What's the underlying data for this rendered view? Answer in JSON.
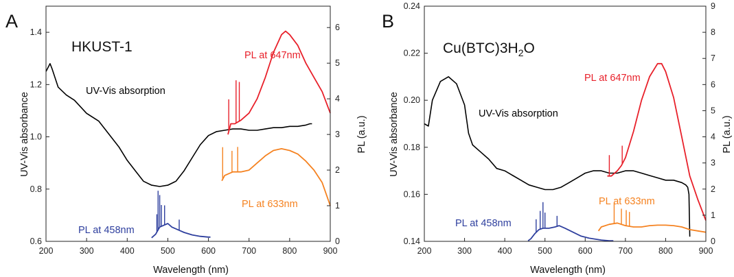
{
  "chart_data": [
    {
      "type": "line",
      "panel": "A",
      "title": "HKUST-1",
      "title_sub": "",
      "title_tail": "",
      "xlabel": "Wavelength (nm)",
      "ylabel": "UV-Vis absorbance",
      "y2label": "PL (a.u.)",
      "xlim": [
        200,
        900
      ],
      "ylim": [
        0.6,
        1.5
      ],
      "y2lim": [
        0,
        6.6
      ],
      "xticks": [
        "200",
        "300",
        "400",
        "500",
        "600",
        "700",
        "800",
        "900"
      ],
      "yticks": [
        "0.6",
        "0.8",
        "1.0",
        "1.2",
        "1.4"
      ],
      "y2ticks": [
        "0",
        "1",
        "2",
        "3",
        "4",
        "5",
        "6"
      ],
      "colors": {
        "uvvis": "#000000",
        "pl647": "#e8202a",
        "pl633": "#f58220",
        "pl458": "#2e3f9e"
      },
      "series": [
        {
          "name": "UV-Vis absorption",
          "axis": "left",
          "color": "#000000",
          "x": [
            200,
            210,
            215,
            230,
            250,
            270,
            300,
            330,
            350,
            380,
            400,
            420,
            440,
            460,
            480,
            500,
            520,
            540,
            560,
            580,
            600,
            620,
            640,
            660,
            680,
            700,
            720,
            740,
            760,
            780,
            800,
            820,
            840,
            850,
            855
          ],
          "y": [
            1.25,
            1.28,
            1.26,
            1.19,
            1.16,
            1.14,
            1.09,
            1.06,
            1.02,
            0.96,
            0.91,
            0.87,
            0.83,
            0.815,
            0.81,
            0.815,
            0.83,
            0.87,
            0.92,
            0.97,
            1.005,
            1.02,
            1.025,
            1.03,
            1.03,
            1.025,
            1.025,
            1.03,
            1.035,
            1.035,
            1.04,
            1.04,
            1.045,
            1.05,
            1.05
          ]
        },
        {
          "name": "PL at 647nm",
          "axis": "right",
          "color": "#e8202a",
          "x": [
            648,
            655,
            665,
            680,
            700,
            720,
            740,
            760,
            780,
            790,
            800,
            820,
            840,
            860,
            880,
            900
          ],
          "y": [
            3.0,
            3.3,
            3.3,
            3.4,
            3.6,
            4.0,
            4.6,
            5.3,
            5.8,
            5.9,
            5.8,
            5.5,
            5.0,
            4.6,
            4.2,
            3.6
          ]
        },
        {
          "name": "PL at 633nm",
          "axis": "right",
          "color": "#f58220",
          "x": [
            633,
            640,
            660,
            680,
            700,
            720,
            740,
            760,
            780,
            800,
            820,
            840,
            860,
            880,
            900
          ],
          "y": [
            1.7,
            1.85,
            1.95,
            1.95,
            2.0,
            2.2,
            2.4,
            2.55,
            2.6,
            2.55,
            2.45,
            2.25,
            2.0,
            1.65,
            1.0
          ]
        },
        {
          "name": "PL at 458nm",
          "axis": "right",
          "color": "#2e3f9e",
          "x": [
            460,
            470,
            480,
            490,
            500,
            510,
            520,
            530,
            540,
            560,
            580,
            600,
            605
          ],
          "y": [
            0.1,
            0.2,
            0.4,
            0.45,
            0.5,
            0.4,
            0.35,
            0.3,
            0.25,
            0.18,
            0.14,
            0.12,
            0.12
          ]
        }
      ],
      "spikes": {
        "pl647": [
          [
            650,
            0.9
          ],
          [
            668,
            1.2
          ],
          [
            676,
            1.1
          ]
        ],
        "pl633": [
          [
            635,
            0.9
          ],
          [
            658,
            0.6
          ],
          [
            672,
            0.7
          ]
        ],
        "pl458": [
          [
            473,
            0.5
          ],
          [
            476,
            1.1
          ],
          [
            480,
            0.9
          ],
          [
            484,
            0.6
          ],
          [
            492,
            0.55
          ],
          [
            528,
            0.3
          ]
        ]
      },
      "annotations": [
        {
          "text": "UV-Vis absorption",
          "series": "uvvis"
        },
        {
          "text": "PL at 647nm",
          "series": "pl647"
        },
        {
          "text": "PL at 633nm",
          "series": "pl633"
        },
        {
          "text": "PL at 458nm",
          "series": "pl458"
        }
      ]
    },
    {
      "type": "line",
      "panel": "B",
      "title": "Cu(BTC)3H",
      "title_sub": "2",
      "title_tail": "O",
      "xlabel": "Wavelength (nm)",
      "ylabel": "UV-Vis absorbance",
      "y2label": "PL (a.u.)",
      "xlim": [
        200,
        900
      ],
      "ylim": [
        0.14,
        0.24
      ],
      "y2lim": [
        0,
        9
      ],
      "xticks": [
        "200",
        "300",
        "400",
        "500",
        "600",
        "700",
        "800",
        "900"
      ],
      "yticks": [
        "0.14",
        "0.16",
        "0.18",
        "0.20",
        "0.22",
        "0.24"
      ],
      "y2ticks": [
        "0",
        "1",
        "2",
        "3",
        "4",
        "5",
        "6",
        "7",
        "8",
        "9"
      ],
      "colors": {
        "uvvis": "#000000",
        "pl647": "#e8202a",
        "pl633": "#f58220",
        "pl458": "#2e3f9e"
      },
      "series": [
        {
          "name": "UV-Vis absorption",
          "axis": "left",
          "color": "#000000",
          "x": [
            200,
            210,
            220,
            240,
            260,
            280,
            300,
            310,
            320,
            340,
            360,
            380,
            400,
            420,
            440,
            460,
            480,
            500,
            520,
            540,
            560,
            580,
            600,
            620,
            640,
            660,
            680,
            700,
            720,
            740,
            760,
            780,
            800,
            820,
            840,
            850,
            855,
            858,
            860
          ],
          "y": [
            0.19,
            0.189,
            0.2,
            0.208,
            0.21,
            0.207,
            0.198,
            0.186,
            0.181,
            0.178,
            0.175,
            0.171,
            0.17,
            0.168,
            0.166,
            0.164,
            0.163,
            0.162,
            0.162,
            0.163,
            0.165,
            0.167,
            0.169,
            0.17,
            0.17,
            0.169,
            0.169,
            0.17,
            0.17,
            0.169,
            0.168,
            0.167,
            0.166,
            0.166,
            0.165,
            0.164,
            0.163,
            0.16,
            0.142
          ]
        },
        {
          "name": "PL at 647nm",
          "axis": "right",
          "color": "#e8202a",
          "x": [
            655,
            665,
            680,
            690,
            700,
            720,
            740,
            760,
            780,
            790,
            800,
            820,
            840,
            860,
            880,
            900
          ],
          "y": [
            2.5,
            2.5,
            2.7,
            2.9,
            3.2,
            4.2,
            5.4,
            6.3,
            6.8,
            6.8,
            6.5,
            5.5,
            4.0,
            2.5,
            1.6,
            0.8
          ]
        },
        {
          "name": "PL at 633nm",
          "axis": "right",
          "color": "#f58220",
          "x": [
            633,
            640,
            660,
            680,
            700,
            720,
            740,
            760,
            780,
            800,
            820,
            840,
            860,
            880,
            900
          ],
          "y": [
            0.4,
            0.55,
            0.65,
            0.7,
            0.6,
            0.55,
            0.55,
            0.6,
            0.62,
            0.62,
            0.6,
            0.55,
            0.45,
            0.4,
            0.35
          ]
        },
        {
          "name": "PL at 458nm",
          "axis": "right",
          "color": "#2e3f9e",
          "x": [
            458,
            465,
            475,
            485,
            495,
            510,
            525,
            535,
            550,
            570,
            590,
            610,
            640,
            660,
            670
          ],
          "y": [
            0.02,
            0.1,
            0.3,
            0.45,
            0.5,
            0.5,
            0.55,
            0.6,
            0.5,
            0.35,
            0.2,
            0.12,
            0.05,
            0.02,
            0.02
          ]
        }
      ],
      "spikes": {
        "pl647": [
          [
            660,
            0.8
          ],
          [
            692,
            0.7
          ]
        ],
        "pl633": [
          [
            672,
            0.8
          ],
          [
            690,
            0.6
          ],
          [
            702,
            0.6
          ],
          [
            710,
            0.55
          ]
        ],
        "pl458": [
          [
            478,
            0.5
          ],
          [
            488,
            0.7
          ],
          [
            495,
            1.0
          ],
          [
            500,
            0.6
          ],
          [
            530,
            0.4
          ]
        ]
      },
      "annotations": [
        {
          "text": "UV-Vis absorption",
          "series": "uvvis"
        },
        {
          "text": "PL at 647nm",
          "series": "pl647"
        },
        {
          "text": "PL at 633nm",
          "series": "pl633"
        },
        {
          "text": "PL at 458nm",
          "series": "pl458"
        }
      ]
    }
  ]
}
